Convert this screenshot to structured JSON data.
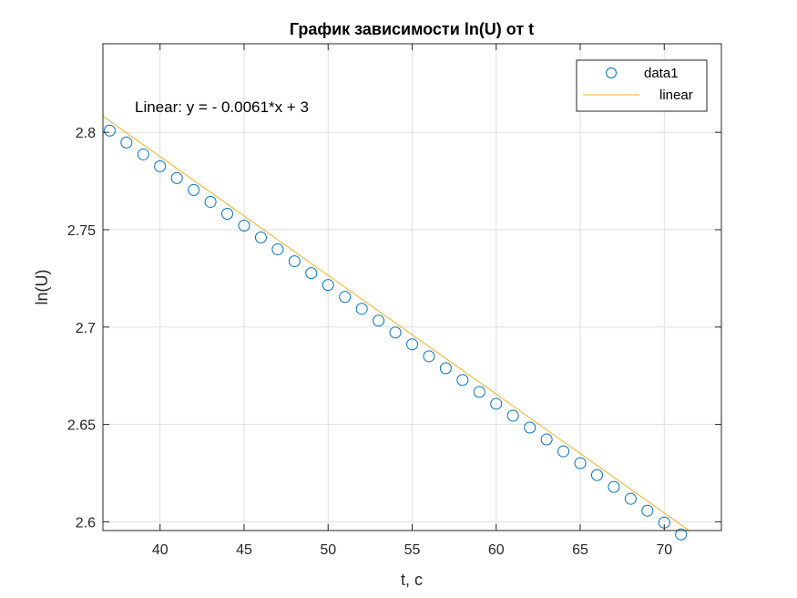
{
  "chart_data": {
    "type": "scatter",
    "title": "График зависимости ln(U) от t",
    "xlabel": "t, c",
    "ylabel": "ln(U)",
    "xlim": [
      36.6,
      73.4
    ],
    "ylim": [
      2.5955,
      2.8455
    ],
    "xticks": [
      40,
      45,
      50,
      55,
      60,
      65,
      70
    ],
    "yticks": [
      2.6,
      2.65,
      2.7,
      2.75,
      2.8
    ],
    "xtick_labels": [
      "40",
      "45",
      "50",
      "55",
      "60",
      "65",
      "70"
    ],
    "ytick_labels": [
      "2.6",
      "2.65",
      "2.7",
      "2.75",
      "2.8"
    ],
    "grid": true,
    "legend_position": "top-right",
    "annotation": "Linear:  y = - 0.0061*x + 3",
    "series": [
      {
        "name": "data1",
        "marker": "circle",
        "color": "#0072BD",
        "x": [
          37,
          38,
          39,
          40,
          41,
          42,
          43,
          44,
          45,
          46,
          47,
          48,
          49,
          50,
          51,
          52,
          53,
          54,
          55,
          56,
          57,
          58,
          59,
          60,
          61,
          62,
          63,
          64,
          65,
          66,
          67,
          68,
          69,
          70,
          71
        ],
        "y": [
          2.8009,
          2.7948,
          2.7887,
          2.7826,
          2.7765,
          2.7704,
          2.7643,
          2.7582,
          2.7521,
          2.746,
          2.7399,
          2.7338,
          2.7277,
          2.7216,
          2.7155,
          2.7094,
          2.7033,
          2.6972,
          2.6911,
          2.685,
          2.6789,
          2.6728,
          2.6667,
          2.6606,
          2.6545,
          2.6484,
          2.6423,
          2.6362,
          2.6301,
          2.624,
          2.6179,
          2.6118,
          2.6057,
          2.5996,
          2.5935
        ]
      },
      {
        "name": "linear",
        "marker": "line",
        "color": "#EDB120",
        "x": [
          36.6,
          73.4
        ],
        "y": [
          2.8083,
          2.5838
        ]
      }
    ]
  }
}
